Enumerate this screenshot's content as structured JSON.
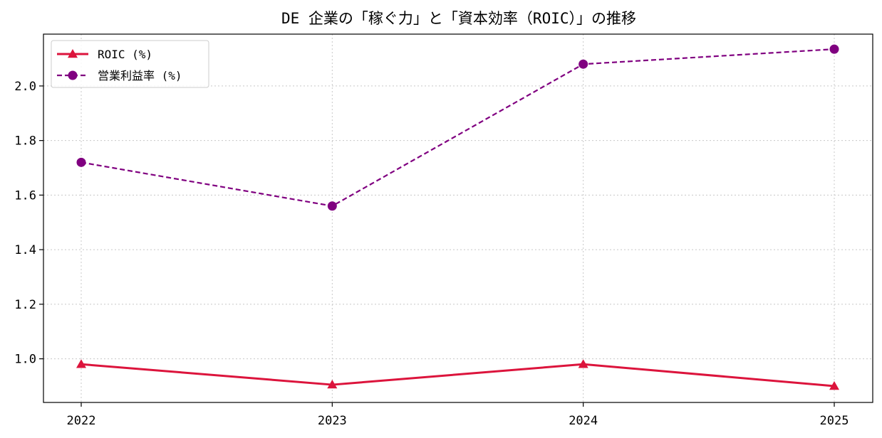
{
  "chart_data": {
    "type": "line",
    "title": "DE 企業の「稼ぐ力」と「資本効率（ROIC）」の推移",
    "xlabel": "",
    "ylabel": "",
    "x": [
      "2022",
      "2023",
      "2024",
      "2025"
    ],
    "ylim": [
      0.84,
      2.19
    ],
    "yticks": [
      "1.0",
      "1.2",
      "1.4",
      "1.6",
      "1.8",
      "2.0"
    ],
    "grid": true,
    "legend_position": "top-left",
    "series": [
      {
        "name": "ROIC (%)",
        "values": [
          0.98,
          0.905,
          0.98,
          0.9
        ],
        "color": "#dc143c",
        "style": "solid",
        "marker": "triangle"
      },
      {
        "name": "営業利益率 (%)",
        "values": [
          1.72,
          1.56,
          2.08,
          2.135
        ],
        "color": "#800080",
        "style": "dashed",
        "marker": "circle"
      }
    ]
  }
}
